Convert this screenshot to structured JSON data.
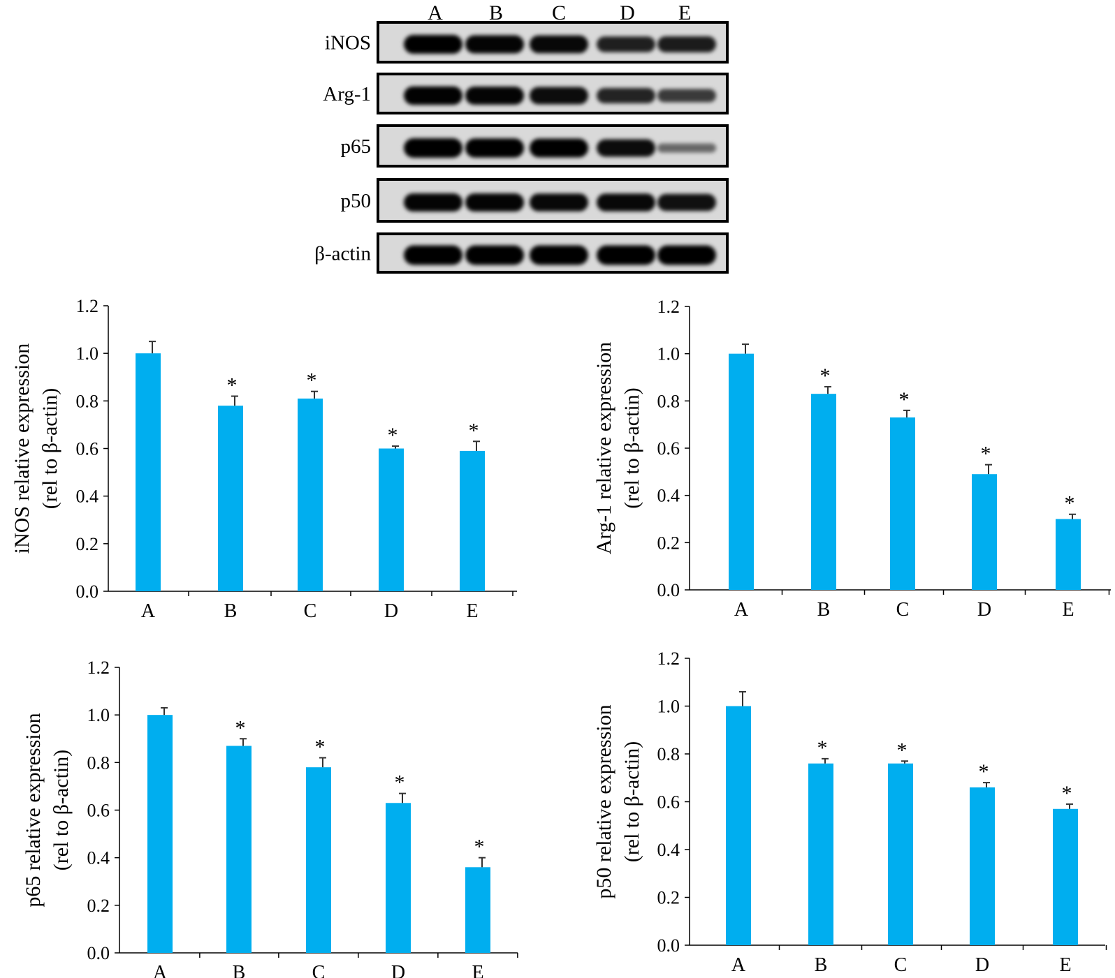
{
  "western_blot": {
    "lanes": [
      "A",
      "B",
      "C",
      "D",
      "E"
    ],
    "rows": [
      {
        "label": "iNOS",
        "band_intensity": [
          0.95,
          0.9,
          0.88,
          0.72,
          0.75
        ]
      },
      {
        "label": "Arg-1",
        "band_intensity": [
          0.92,
          0.9,
          0.85,
          0.7,
          0.55
        ]
      },
      {
        "label": "p65",
        "band_intensity": [
          1.0,
          0.98,
          0.95,
          0.85,
          0.25
        ]
      },
      {
        "label": "p50",
        "band_intensity": [
          0.9,
          0.9,
          0.88,
          0.88,
          0.82
        ]
      },
      {
        "label": "β-actin",
        "band_intensity": [
          1.0,
          1.0,
          1.0,
          1.0,
          1.0
        ]
      }
    ]
  },
  "styles": {
    "bar_color": "#00AEEF",
    "axis_color": "#000000",
    "blot_background": "#d9d9d9",
    "band_color": "#000000"
  },
  "chart_data": [
    {
      "type": "bar",
      "categories": [
        "A",
        "B",
        "C",
        "D",
        "E"
      ],
      "values": [
        1.0,
        0.78,
        0.81,
        0.6,
        0.59
      ],
      "errors": [
        0.05,
        0.04,
        0.03,
        0.01,
        0.04
      ],
      "significance": [
        "",
        "*",
        "*",
        "*",
        "*"
      ],
      "ylabel_line1": "iNOS relative expression",
      "ylabel_line2": "(rel to β-actin)",
      "ylim": [
        0,
        1.2
      ],
      "yticks": [
        "0.0",
        "0.2",
        "0.4",
        "0.6",
        "0.8",
        "1.0",
        "1.2"
      ],
      "grid": false
    },
    {
      "type": "bar",
      "categories": [
        "A",
        "B",
        "C",
        "D",
        "E"
      ],
      "values": [
        1.0,
        0.83,
        0.73,
        0.49,
        0.3
      ],
      "errors": [
        0.04,
        0.03,
        0.03,
        0.04,
        0.02
      ],
      "significance": [
        "",
        "*",
        "*",
        "*",
        "*"
      ],
      "ylabel_line1": "Arg-1 relative expression",
      "ylabel_line2": "(rel to β-actin)",
      "ylim": [
        0,
        1.2
      ],
      "yticks": [
        "0.0",
        "0.2",
        "0.4",
        "0.6",
        "0.8",
        "1.0",
        "1.2"
      ],
      "grid": false
    },
    {
      "type": "bar",
      "categories": [
        "A",
        "B",
        "C",
        "D",
        "E"
      ],
      "values": [
        1.0,
        0.87,
        0.78,
        0.63,
        0.36
      ],
      "errors": [
        0.03,
        0.03,
        0.04,
        0.04,
        0.04
      ],
      "significance": [
        "",
        "*",
        "*",
        "*",
        "*"
      ],
      "ylabel_line1": "p65 relative expression",
      "ylabel_line2": "(rel to β-actin)",
      "ylim": [
        0,
        1.2
      ],
      "yticks": [
        "0.0",
        "0.2",
        "0.4",
        "0.6",
        "0.8",
        "1.0",
        "1.2"
      ],
      "grid": false
    },
    {
      "type": "bar",
      "categories": [
        "A",
        "B",
        "C",
        "D",
        "E"
      ],
      "values": [
        1.0,
        0.76,
        0.76,
        0.66,
        0.57
      ],
      "errors": [
        0.06,
        0.02,
        0.01,
        0.02,
        0.02
      ],
      "significance": [
        "",
        "*",
        "*",
        "*",
        "*"
      ],
      "ylabel_line1": "p50 relative expression",
      "ylabel_line2": "(rel to β-actin)",
      "ylim": [
        0,
        1.2
      ],
      "yticks": [
        "0.0",
        "0.2",
        "0.4",
        "0.6",
        "0.8",
        "1.0",
        "1.2"
      ],
      "grid": false
    }
  ]
}
